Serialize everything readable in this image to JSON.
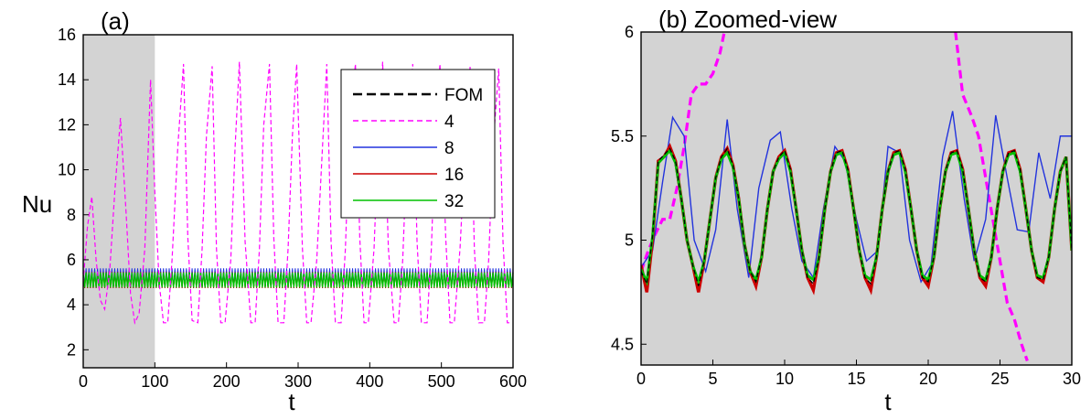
{
  "colors": {
    "fom": "#000000",
    "m4": "#ff00ff",
    "m8": "#2233dd",
    "m16": "#cc0000",
    "m32": "#00c000",
    "shade": "#d3d3d3"
  },
  "chart_data": [
    {
      "type": "line",
      "title": "(a)",
      "xlabel": "t",
      "ylabel": "Nu",
      "xlim": [
        0,
        600
      ],
      "ylim": [
        1.2,
        16
      ],
      "xticks": [
        0,
        100,
        200,
        300,
        400,
        500,
        600
      ],
      "yticks": [
        2,
        4,
        6,
        8,
        10,
        12,
        14,
        16
      ],
      "shaded_region": [
        0,
        100
      ],
      "grid": false,
      "legend": {
        "placement": "top-right",
        "entries": [
          "FOM",
          "4",
          "8",
          "16",
          "32"
        ]
      },
      "series": [
        {
          "name": "4",
          "style": "dashed",
          "x": [
            0,
            6,
            12,
            18,
            24,
            30,
            37,
            44,
            52,
            60,
            66,
            72,
            78,
            86,
            94,
            100,
            106,
            112,
            118,
            124,
            132,
            140,
            146,
            152,
            160,
            166,
            172,
            180,
            186,
            192,
            198,
            206,
            212,
            218,
            226,
            234,
            240,
            246,
            252,
            260,
            266,
            272,
            280,
            286,
            292,
            298,
            306,
            312,
            318,
            326,
            334,
            340,
            346,
            352,
            360,
            366,
            372,
            380,
            386,
            392,
            398,
            406,
            412,
            418,
            426,
            434,
            440,
            446,
            452,
            460,
            466,
            472,
            480,
            486,
            492,
            498,
            506,
            512,
            518,
            526,
            534,
            540,
            546,
            552,
            560,
            566,
            572,
            580,
            586,
            592,
            598
          ],
          "y": [
            5.0,
            7.5,
            8.8,
            6.0,
            4.2,
            3.8,
            5.5,
            9.0,
            12.3,
            8.0,
            4.5,
            3.2,
            3.6,
            6.5,
            14.0,
            9.0,
            5.0,
            3.2,
            3.2,
            6.0,
            11.0,
            14.7,
            7.0,
            3.3,
            3.2,
            6.5,
            11.5,
            14.6,
            6.5,
            3.2,
            3.2,
            6.0,
            11.0,
            14.8,
            6.8,
            3.2,
            3.2,
            6.5,
            12.0,
            14.7,
            7.0,
            3.2,
            3.2,
            6.5,
            11.5,
            14.7,
            6.5,
            3.2,
            3.2,
            6.0,
            11.0,
            14.7,
            6.8,
            3.2,
            3.2,
            6.5,
            12.0,
            14.7,
            7.0,
            3.2,
            3.2,
            6.5,
            11.5,
            14.8,
            6.5,
            3.2,
            3.2,
            6.0,
            11.0,
            14.7,
            6.8,
            3.2,
            3.2,
            6.5,
            12.0,
            14.7,
            7.0,
            3.2,
            3.2,
            6.5,
            11.5,
            14.6,
            6.5,
            3.2,
            3.2,
            6.0,
            11.0,
            14.5,
            6.8,
            3.2,
            3.2
          ]
        },
        {
          "name": "FOM",
          "style": "dashed",
          "y_band": [
            4.75,
            5.45
          ]
        },
        {
          "name": "8",
          "style": "solid",
          "y_band": [
            4.8,
            5.62
          ]
        },
        {
          "name": "16",
          "style": "solid",
          "y_band": [
            4.74,
            5.45
          ]
        },
        {
          "name": "32",
          "style": "solid",
          "y_band": [
            4.77,
            5.43
          ]
        }
      ]
    },
    {
      "type": "line",
      "title": "(b) Zoomed-view",
      "xlabel": "t",
      "ylabel": "",
      "xlim": [
        0,
        30
      ],
      "ylim": [
        4.4,
        6
      ],
      "xticks": [
        0,
        5,
        10,
        15,
        20,
        25,
        30
      ],
      "yticks": [
        4.5,
        5,
        5.5,
        6
      ],
      "shaded_region": [
        0,
        30
      ],
      "grid": false,
      "series": [
        {
          "name": "4",
          "style": "dashed",
          "x": [
            0,
            0.5,
            1,
            1.5,
            2,
            2.5,
            3,
            3.5,
            4,
            4.5,
            5,
            5.5,
            5.8,
            21.9,
            22.4,
            23,
            23.5,
            24,
            24.5,
            25,
            25.5,
            26,
            26.5,
            26.9
          ],
          "y": [
            4.85,
            4.95,
            5.03,
            5.1,
            5.1,
            5.25,
            5.45,
            5.7,
            5.75,
            5.75,
            5.8,
            5.9,
            6.0,
            6.0,
            5.7,
            5.6,
            5.5,
            5.3,
            5.1,
            4.9,
            4.7,
            4.62,
            4.5,
            4.42
          ]
        },
        {
          "name": "8",
          "style": "solid",
          "x": [
            0,
            0.8,
            1.5,
            2.2,
            3.0,
            3.7,
            4.5,
            5.2,
            6.0,
            6.7,
            7.5,
            8.2,
            9.0,
            9.7,
            10.5,
            11.2,
            12.0,
            12.7,
            13.5,
            14.2,
            15.0,
            15.7,
            16.5,
            17.2,
            18.0,
            18.7,
            19.5,
            20.2,
            21.0,
            21.7,
            22.5,
            23.2,
            24.0,
            24.7,
            25.5,
            26.2,
            27.0,
            27.7,
            28.5,
            29.2,
            30.0
          ],
          "y": [
            4.87,
            4.95,
            5.28,
            5.59,
            5.5,
            5.0,
            4.85,
            5.05,
            5.58,
            5.15,
            4.82,
            5.25,
            5.48,
            5.52,
            5.15,
            4.9,
            4.82,
            5.15,
            5.45,
            5.38,
            5.1,
            4.9,
            4.95,
            5.45,
            5.42,
            5.0,
            4.8,
            4.88,
            5.4,
            5.62,
            5.2,
            4.9,
            5.1,
            5.6,
            5.3,
            5.05,
            5.04,
            5.42,
            5.2,
            5.5,
            5.5
          ]
        },
        {
          "name": "16",
          "style": "solid",
          "x": [
            0,
            0.4,
            0.8,
            1.2,
            1.6,
            2.0,
            2.4,
            2.8,
            3.2,
            3.6,
            4.0,
            4.4,
            4.8,
            5.2,
            5.6,
            6.0,
            6.4,
            6.8,
            7.2,
            7.6,
            8.0,
            8.4,
            8.8,
            9.2,
            9.6,
            10.0,
            10.4,
            10.8,
            11.2,
            11.6,
            12.0,
            12.4,
            12.8,
            13.2,
            13.6,
            14.0,
            14.4,
            14.8,
            15.2,
            15.6,
            16.0,
            16.4,
            16.8,
            17.2,
            17.6,
            18.0,
            18.4,
            18.8,
            19.2,
            19.6,
            20.0,
            20.4,
            20.8,
            21.2,
            21.6,
            22.0,
            22.4,
            22.8,
            23.2,
            23.6,
            24.0,
            24.4,
            24.8,
            25.2,
            25.6,
            26.0,
            26.4,
            26.8,
            27.2,
            27.6,
            28.0,
            28.4,
            28.8,
            29.2,
            29.6,
            30.0
          ],
          "y": [
            4.88,
            4.75,
            5.0,
            5.38,
            5.4,
            5.45,
            5.38,
            5.2,
            5.0,
            4.88,
            4.75,
            4.9,
            5.1,
            5.3,
            5.4,
            5.44,
            5.36,
            5.2,
            4.98,
            4.85,
            4.78,
            4.92,
            5.15,
            5.33,
            5.4,
            5.43,
            5.34,
            5.15,
            4.95,
            4.82,
            4.76,
            4.92,
            5.15,
            5.33,
            5.42,
            5.43,
            5.34,
            5.15,
            4.95,
            4.82,
            4.76,
            4.92,
            5.15,
            5.33,
            5.42,
            5.43,
            5.34,
            5.15,
            4.95,
            4.82,
            4.78,
            4.92,
            5.15,
            5.33,
            5.42,
            5.43,
            5.34,
            5.15,
            4.95,
            4.82,
            4.78,
            4.92,
            5.15,
            5.33,
            5.42,
            5.43,
            5.34,
            5.15,
            4.95,
            4.82,
            4.8,
            4.92,
            5.15,
            5.33,
            5.4,
            4.95
          ]
        },
        {
          "name": "FOM",
          "style": "dashed",
          "x": [
            0,
            0.4,
            0.8,
            1.2,
            1.6,
            2.0,
            2.4,
            2.8,
            3.2,
            3.6,
            4.0,
            4.4,
            4.8,
            5.2,
            5.6,
            6.0,
            6.4,
            6.8,
            7.2,
            7.6,
            8.0,
            8.4,
            8.8,
            9.2,
            9.6,
            10.0,
            10.4,
            10.8,
            11.2,
            11.6,
            12.0,
            12.4,
            12.8,
            13.2,
            13.6,
            14.0,
            14.4,
            14.8,
            15.2,
            15.6,
            16.0,
            16.4,
            16.8,
            17.2,
            17.6,
            18.0,
            18.4,
            18.8,
            19.2,
            19.6,
            20.0,
            20.4,
            20.8,
            21.2,
            21.6,
            22.0,
            22.4,
            22.8,
            23.2,
            23.6,
            24.0,
            24.4,
            24.8,
            25.2,
            25.6,
            26.0,
            26.4,
            26.8,
            27.2,
            27.6,
            28.0,
            28.4,
            28.8,
            29.2,
            29.6,
            30.0
          ],
          "y": [
            4.85,
            4.79,
            5.02,
            5.38,
            5.41,
            5.44,
            5.38,
            5.2,
            5.0,
            4.88,
            4.78,
            4.9,
            5.1,
            5.3,
            5.4,
            5.44,
            5.36,
            5.2,
            4.98,
            4.85,
            4.8,
            4.92,
            5.15,
            5.33,
            5.4,
            5.43,
            5.34,
            5.15,
            4.95,
            4.82,
            4.79,
            4.92,
            5.15,
            5.33,
            5.42,
            5.43,
            5.34,
            5.15,
            4.95,
            4.82,
            4.79,
            4.92,
            5.15,
            5.33,
            5.42,
            5.43,
            5.34,
            5.15,
            4.95,
            4.82,
            4.8,
            4.92,
            5.15,
            5.33,
            5.42,
            5.43,
            5.34,
            5.15,
            4.95,
            4.82,
            4.8,
            4.92,
            5.15,
            5.33,
            5.42,
            5.43,
            5.34,
            5.15,
            4.95,
            4.82,
            4.81,
            4.92,
            5.15,
            5.33,
            5.4,
            4.95
          ]
        },
        {
          "name": "32",
          "style": "solid",
          "x": [
            0,
            0.4,
            0.8,
            1.2,
            1.6,
            2.0,
            2.4,
            2.8,
            3.2,
            3.6,
            4.0,
            4.4,
            4.8,
            5.2,
            5.6,
            6.0,
            6.4,
            6.8,
            7.2,
            7.6,
            8.0,
            8.4,
            8.8,
            9.2,
            9.6,
            10.0,
            10.4,
            10.8,
            11.2,
            11.6,
            12.0,
            12.4,
            12.8,
            13.2,
            13.6,
            14.0,
            14.4,
            14.8,
            15.2,
            15.6,
            16.0,
            16.4,
            16.8,
            17.2,
            17.6,
            18.0,
            18.4,
            18.8,
            19.2,
            19.6,
            20.0,
            20.4,
            20.8,
            21.2,
            21.6,
            22.0,
            22.4,
            22.8,
            23.2,
            23.6,
            24.0,
            24.4,
            24.8,
            25.2,
            25.6,
            26.0,
            26.4,
            26.8,
            27.2,
            27.6,
            28.0,
            28.4,
            28.8,
            29.2,
            29.6,
            30.0
          ],
          "y": [
            4.86,
            4.8,
            5.02,
            5.37,
            5.4,
            5.43,
            5.37,
            5.2,
            5.0,
            4.88,
            4.8,
            4.9,
            5.1,
            5.3,
            5.39,
            5.42,
            5.35,
            5.2,
            4.98,
            4.85,
            4.81,
            4.92,
            5.15,
            5.33,
            5.39,
            5.42,
            5.33,
            5.15,
            4.95,
            4.83,
            4.81,
            4.92,
            5.15,
            5.33,
            5.41,
            5.42,
            5.33,
            5.15,
            4.95,
            4.83,
            4.81,
            4.92,
            5.15,
            5.33,
            5.41,
            5.42,
            5.33,
            5.15,
            4.95,
            4.83,
            4.81,
            4.92,
            5.15,
            5.33,
            5.41,
            5.42,
            5.33,
            5.15,
            4.95,
            4.83,
            4.81,
            4.92,
            5.15,
            5.33,
            5.41,
            5.42,
            5.33,
            5.15,
            4.95,
            4.83,
            4.82,
            4.92,
            5.15,
            5.33,
            5.4,
            4.95
          ]
        }
      ]
    }
  ]
}
